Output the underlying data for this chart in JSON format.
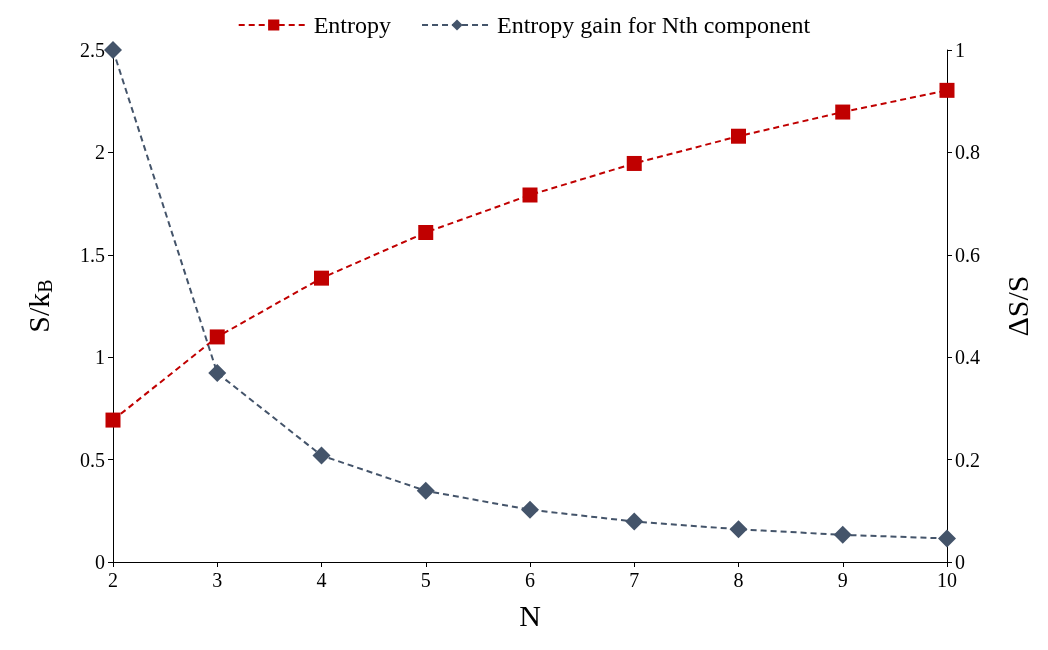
{
  "chart_data": {
    "type": "line",
    "xlabel": "N",
    "ylabel": "S/k$_{B}$",
    "y2label": "ΔS/S",
    "x": [
      2,
      3,
      4,
      5,
      6,
      7,
      8,
      9,
      10
    ],
    "series": [
      {
        "name": "Entropy",
        "color": "#c00000",
        "marker": "square",
        "line_style": "dashed",
        "values": [
          0.693,
          1.099,
          1.386,
          1.609,
          1.792,
          1.946,
          2.079,
          2.197,
          2.303
        ]
      },
      {
        "name": "Entropy gain for Nth component",
        "color": "#44546a",
        "marker": "diamond",
        "line_style": "dashed",
        "axis": "y2",
        "values": [
          1.0,
          0.369,
          0.208,
          0.139,
          0.102,
          0.079,
          0.064,
          0.053,
          0.046
        ]
      }
    ],
    "xlim": [
      2,
      10
    ],
    "xticks": [
      2,
      3,
      4,
      5,
      6,
      7,
      8,
      9,
      10
    ],
    "ylim": [
      0,
      2.5
    ],
    "yticks": [
      0,
      0.5,
      1,
      1.5,
      2,
      2.5
    ],
    "y2lim": [
      0,
      1
    ],
    "y2ticks": [
      0,
      0.2,
      0.4,
      0.6,
      0.8,
      1
    ],
    "grid": false,
    "legend": "top"
  }
}
